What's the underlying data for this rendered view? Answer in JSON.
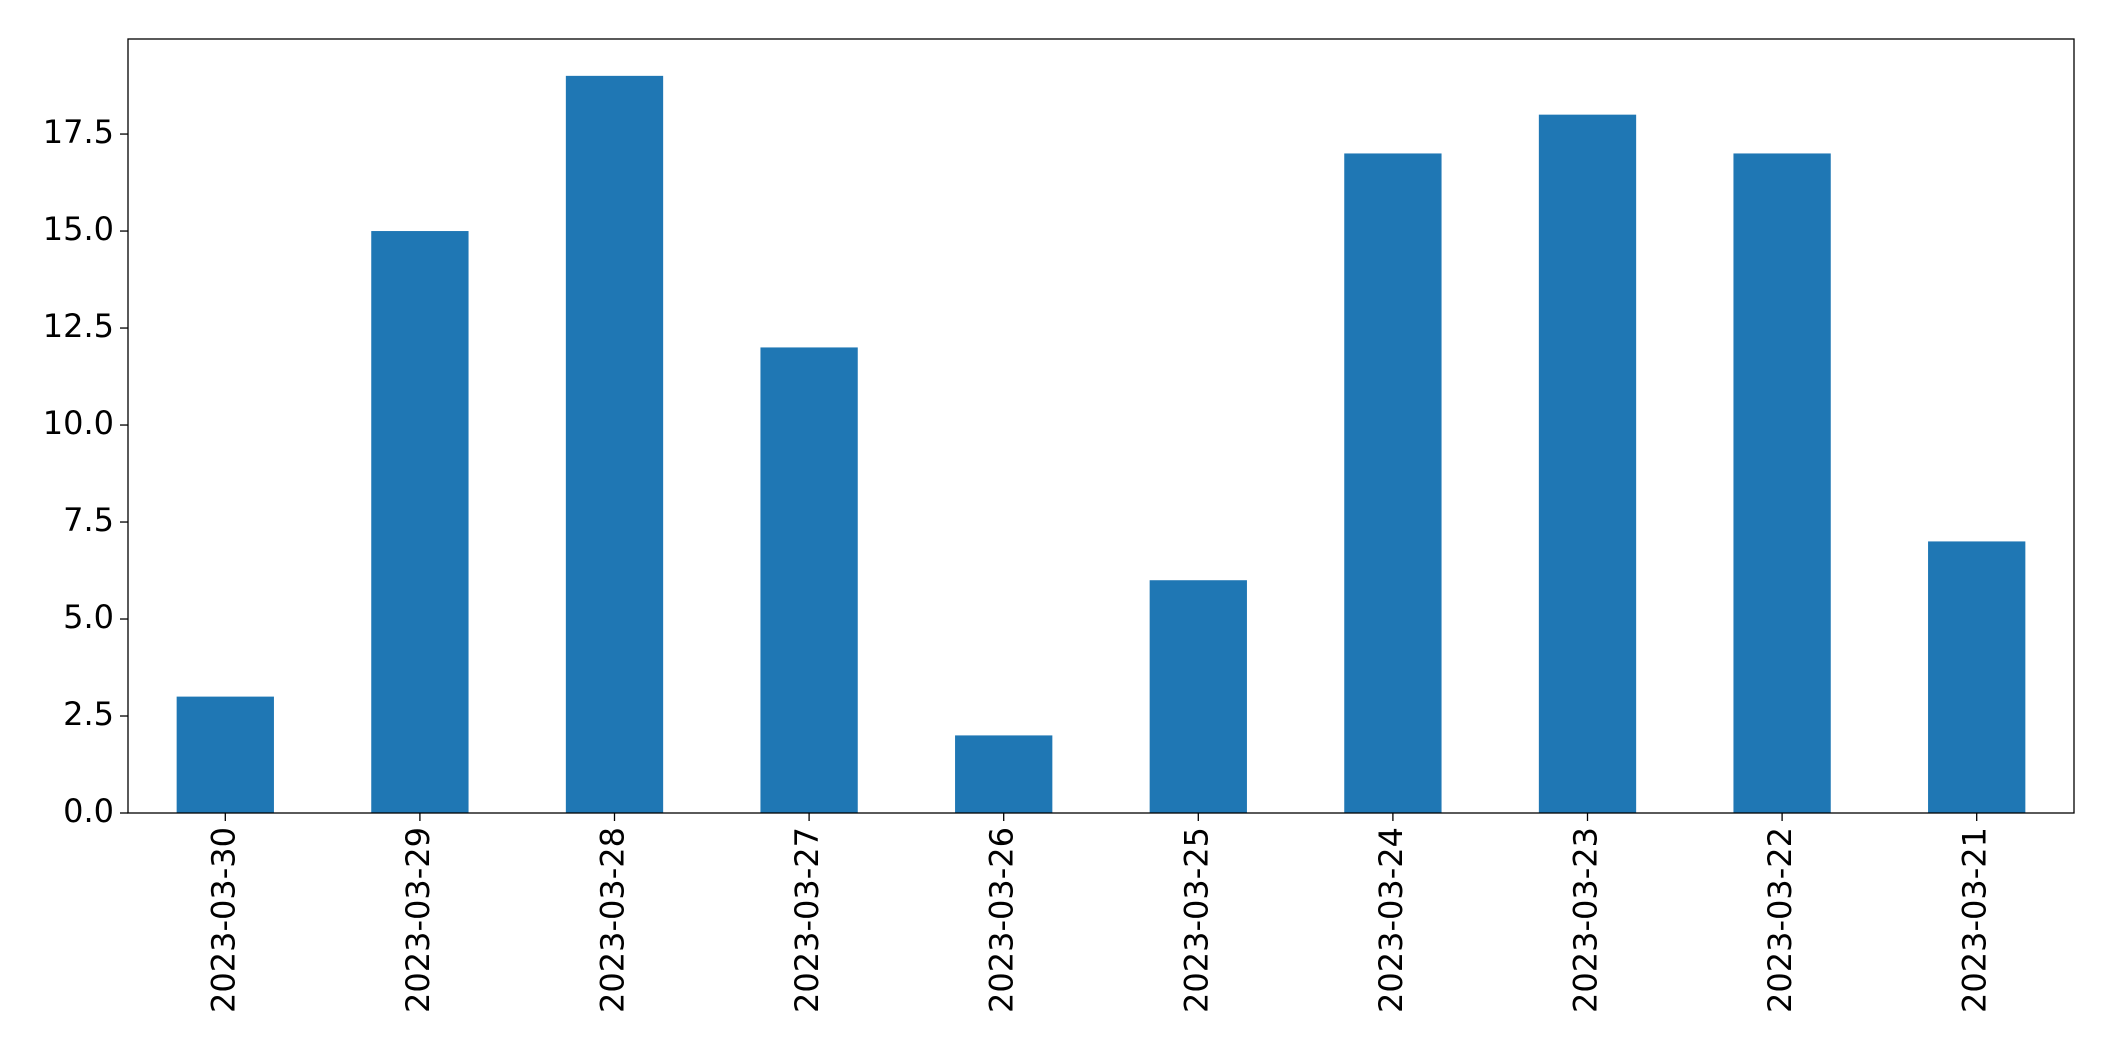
{
  "chart_data": {
    "type": "bar",
    "categories": [
      "2023-03-30",
      "2023-03-29",
      "2023-03-28",
      "2023-03-27",
      "2023-03-26",
      "2023-03-25",
      "2023-03-24",
      "2023-03-23",
      "2023-03-22",
      "2023-03-21"
    ],
    "values": [
      3,
      15,
      19,
      12,
      2,
      6,
      17,
      18,
      17,
      7
    ],
    "color": "#1f77b4",
    "ylim": [
      0,
      19.95
    ],
    "yticks": [
      {
        "value": 0,
        "label": "0.0"
      },
      2.5,
      {
        "value": 5,
        "label": "5.0"
      },
      7.5,
      {
        "value": 10,
        "label": "10.0"
      },
      12.5,
      {
        "value": 15,
        "label": "15.0"
      },
      17.5
    ],
    "grid": false
  }
}
